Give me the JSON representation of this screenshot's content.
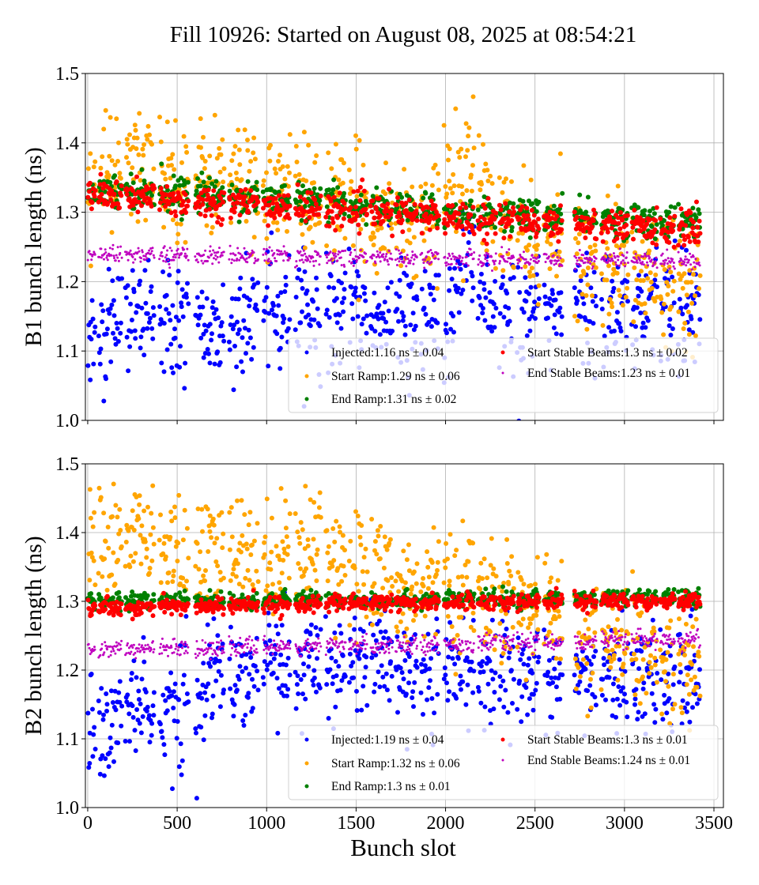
{
  "chart_data": {
    "type": "scatter",
    "title": "Fill 10926: Started on August 08, 2025 at 08:54:21",
    "xlabel": "Bunch slot",
    "xlim": [
      -13,
      3553
    ],
    "xticks": [
      0,
      500,
      1000,
      1500,
      2000,
      2500,
      3000,
      3500
    ],
    "xtick_labels": [
      "0",
      "500",
      "1000",
      "1500",
      "2000",
      "2500",
      "3000",
      "3500"
    ],
    "grid": true,
    "legend_placement": "lower-right",
    "bunch_trains": [
      [
        0,
        40
      ],
      [
        60,
        190
      ],
      [
        210,
        370
      ],
      [
        400,
        560
      ],
      [
        600,
        760
      ],
      [
        790,
        950
      ],
      [
        980,
        1130
      ],
      [
        1160,
        1300
      ],
      [
        1330,
        1440
      ],
      [
        1460,
        1560
      ],
      [
        1580,
        1700
      ],
      [
        1720,
        1840
      ],
      [
        1860,
        1960
      ],
      [
        1990,
        2100
      ],
      [
        2110,
        2160
      ],
      [
        2180,
        2280
      ],
      [
        2300,
        2380
      ],
      [
        2400,
        2520
      ],
      [
        2550,
        2650
      ],
      [
        2720,
        2840
      ],
      [
        2870,
        3020
      ],
      [
        3040,
        3180
      ],
      [
        3200,
        3280
      ],
      [
        3300,
        3420
      ]
    ],
    "panels": [
      {
        "ylabel": "B1 bunch length (ns)",
        "ylim": [
          1.0,
          1.5
        ],
        "yticks": [
          "1.0",
          "1.1",
          "1.2",
          "1.3",
          "1.4",
          "1.5"
        ],
        "series": [
          {
            "name": "Injected:1.16 ns ± 0.04",
            "color": "#0000ff",
            "mean": 1.16,
            "std": 0.04,
            "trend": [
              [
                0,
                1.12
              ],
              [
                350,
                1.17
              ],
              [
                500,
                1.14
              ],
              [
                700,
                1.13
              ],
              [
                1000,
                1.16
              ],
              [
                1500,
                1.15
              ],
              [
                2000,
                1.15
              ],
              [
                2130,
                1.26
              ],
              [
                2200,
                1.16
              ],
              [
                2500,
                1.16
              ],
              [
                3000,
                1.17
              ],
              [
                3420,
                1.16
              ]
            ]
          },
          {
            "name": "Start Ramp:1.29 ns ± 0.06",
            "color": "#ffa500",
            "mean": 1.29,
            "std": 0.06,
            "trend": [
              [
                0,
                1.34
              ],
              [
                350,
                1.37
              ],
              [
                500,
                1.35
              ],
              [
                800,
                1.35
              ],
              [
                1000,
                1.33
              ],
              [
                1300,
                1.32
              ],
              [
                1500,
                1.3
              ],
              [
                1900,
                1.29
              ],
              [
                2130,
                1.37
              ],
              [
                2300,
                1.28
              ],
              [
                2600,
                1.25
              ],
              [
                2800,
                1.24
              ],
              [
                3000,
                1.22
              ],
              [
                3420,
                1.2
              ]
            ]
          },
          {
            "name": "End Ramp:1.31 ns ± 0.02",
            "color": "#008000",
            "mean": 1.31,
            "std": 0.02,
            "trend": [
              [
                0,
                1.335
              ],
              [
                1000,
                1.32
              ],
              [
                2000,
                1.3
              ],
              [
                3420,
                1.285
              ]
            ]
          },
          {
            "name": "Start Stable Beams:1.3 ns ± 0.02",
            "color": "#ff0000",
            "mean": 1.3,
            "std": 0.02,
            "trend": [
              [
                0,
                1.325
              ],
              [
                1000,
                1.31
              ],
              [
                2000,
                1.293
              ],
              [
                3420,
                1.275
              ]
            ]
          },
          {
            "name": "End Stable Beams:1.23 ns ± 0.01",
            "color": "#bf00bf",
            "mean": 1.23,
            "std": 0.01,
            "trend": [
              [
                0,
                1.24
              ],
              [
                1500,
                1.235
              ],
              [
                3420,
                1.23
              ]
            ]
          }
        ]
      },
      {
        "ylabel": "B2 bunch length (ns)",
        "ylim": [
          1.0,
          1.5
        ],
        "yticks": [
          "1.0",
          "1.1",
          "1.2",
          "1.3",
          "1.4",
          "1.5"
        ],
        "series": [
          {
            "name": "Injected:1.19 ns ± 0.04",
            "color": "#0000ff",
            "mean": 1.19,
            "std": 0.04,
            "trend": [
              [
                0,
                1.1
              ],
              [
                300,
                1.15
              ],
              [
                500,
                1.15
              ],
              [
                700,
                1.18
              ],
              [
                1000,
                1.2
              ],
              [
                1500,
                1.21
              ],
              [
                2000,
                1.2
              ],
              [
                2500,
                1.19
              ],
              [
                3000,
                1.19
              ],
              [
                3420,
                1.19
              ]
            ]
          },
          {
            "name": "Start Ramp:1.32 ns ± 0.06",
            "color": "#ffa500",
            "mean": 1.32,
            "std": 0.06,
            "trend": [
              [
                0,
                1.39
              ],
              [
                350,
                1.39
              ],
              [
                500,
                1.36
              ],
              [
                800,
                1.37
              ],
              [
                1000,
                1.36
              ],
              [
                1250,
                1.39
              ],
              [
                1450,
                1.36
              ],
              [
                1600,
                1.33
              ],
              [
                2000,
                1.32
              ],
              [
                2300,
                1.3
              ],
              [
                2600,
                1.28
              ],
              [
                2800,
                1.23
              ],
              [
                3420,
                1.22
              ]
            ]
          },
          {
            "name": "End Ramp:1.3 ns ± 0.01",
            "color": "#008000",
            "mean": 1.3,
            "std": 0.01,
            "trend": [
              [
                0,
                1.3
              ],
              [
                3420,
                1.305
              ]
            ]
          },
          {
            "name": "Start Stable Beams:1.3 ns ± 0.01",
            "color": "#ff0000",
            "mean": 1.3,
            "std": 0.01,
            "trend": [
              [
                0,
                1.29
              ],
              [
                1500,
                1.297
              ],
              [
                3420,
                1.302
              ]
            ]
          },
          {
            "name": "End Stable Beams:1.24 ns ± 0.01",
            "color": "#bf00bf",
            "mean": 1.24,
            "std": 0.01,
            "trend": [
              [
                0,
                1.23
              ],
              [
                1500,
                1.235
              ],
              [
                3420,
                1.245
              ]
            ]
          }
        ]
      }
    ]
  }
}
